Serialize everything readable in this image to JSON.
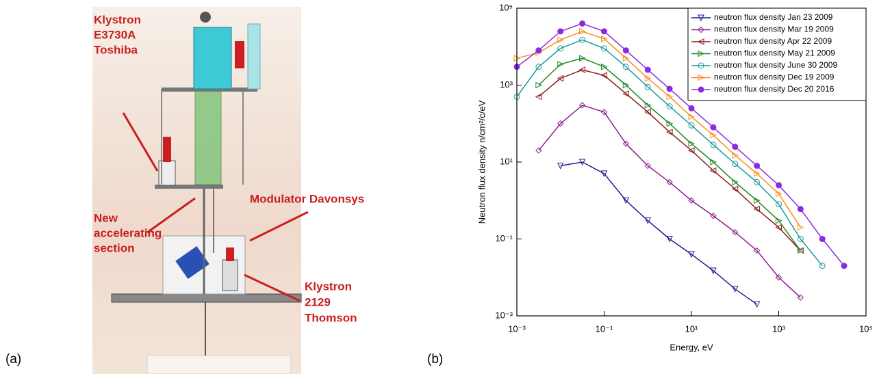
{
  "panel_labels": [
    "(a)",
    "(b)"
  ],
  "diagram": {
    "labels": [
      {
        "lines": [
          "Klystron",
          "E3730A",
          "Toshiba"
        ]
      },
      {
        "lines": [
          "New",
          "accelerating",
          "section"
        ]
      },
      {
        "lines": [
          "Modulator Davonsys"
        ]
      },
      {
        "lines": [
          "Klystron",
          "2129",
          "Thomson"
        ]
      }
    ]
  },
  "chart_data": {
    "type": "line",
    "xlabel": "Energy, eV",
    "ylabel": "Neutron flux density n/cm²/c/eV",
    "log_x": true,
    "log_y": true,
    "x": [
      0.001,
      0.00316,
      0.01,
      0.0316,
      0.1,
      0.316,
      1,
      3.16,
      10,
      31.6,
      100,
      316,
      1000,
      3160,
      10000,
      31600
    ],
    "xlim": [
      0.001,
      100000
    ],
    "ylim": [
      0.001,
      100000
    ],
    "xticks": [
      {
        "value": 0.001,
        "label": "10⁻³"
      },
      {
        "value": 0.1,
        "label": "10⁻¹"
      },
      {
        "value": 10,
        "label": "10¹"
      },
      {
        "value": 1000,
        "label": "10³"
      },
      {
        "value": 100000,
        "label": "10⁵"
      }
    ],
    "yticks": [
      {
        "value": 0.001,
        "label": "10⁻³"
      },
      {
        "value": 0.1,
        "label": "10⁻¹"
      },
      {
        "value": 10,
        "label": "10¹"
      },
      {
        "value": 1000,
        "label": "10³"
      },
      {
        "value": 100000,
        "label": "10⁵"
      }
    ],
    "legend": "top-right",
    "series": [
      {
        "name": "neutron flux density Jan 23 2009",
        "color": "#1c1c8f",
        "marker": "triangle-down",
        "values": [
          null,
          null,
          8,
          10,
          5,
          1,
          0.3,
          0.1,
          0.04,
          0.015,
          0.005,
          0.002,
          null,
          null,
          null,
          null
        ]
      },
      {
        "name": "neutron flux density Mar 19 2009",
        "color": "#8b1e8b",
        "marker": "diamond",
        "values": [
          null,
          20,
          100,
          300,
          200,
          30,
          8,
          3,
          1,
          0.4,
          0.15,
          0.05,
          0.01,
          0.003,
          null,
          null
        ]
      },
      {
        "name": "neutron flux density Apr 22 2009",
        "color": "#8b1a1a",
        "marker": "triangle-left",
        "values": [
          null,
          500,
          1500,
          2500,
          1800,
          600,
          200,
          60,
          20,
          6,
          2,
          0.6,
          0.2,
          0.05,
          null,
          null
        ]
      },
      {
        "name": "neutron flux density May 21 2009",
        "color": "#1f8a1f",
        "marker": "triangle-right",
        "values": [
          null,
          1000,
          3500,
          5000,
          3000,
          1000,
          300,
          100,
          30,
          10,
          3,
          1,
          0.3,
          0.05,
          null,
          null
        ]
      },
      {
        "name": "neutron flux density June 30 2009",
        "color": "#1a9a9a",
        "marker": "circle",
        "values": [
          500,
          3000,
          9000,
          15000,
          9000,
          3000,
          900,
          280,
          90,
          28,
          9,
          3,
          0.8,
          0.1,
          0.02,
          null
        ]
      },
      {
        "name": "neutron flux density Dec 19 2009",
        "color": "#ff8c1a",
        "marker": "triangle-right",
        "values": [
          5000,
          7000,
          15000,
          25000,
          16000,
          5000,
          1500,
          500,
          150,
          50,
          15,
          5,
          1.5,
          0.2,
          null,
          null
        ]
      },
      {
        "name": "neutron flux density Dec 20 2016",
        "color": "#8a2be2",
        "marker": "filled-circle",
        "values": [
          3000,
          8000,
          25000,
          40000,
          25000,
          8000,
          2500,
          800,
          250,
          80,
          25,
          8,
          2.5,
          0.6,
          0.1,
          0.02
        ]
      }
    ]
  }
}
